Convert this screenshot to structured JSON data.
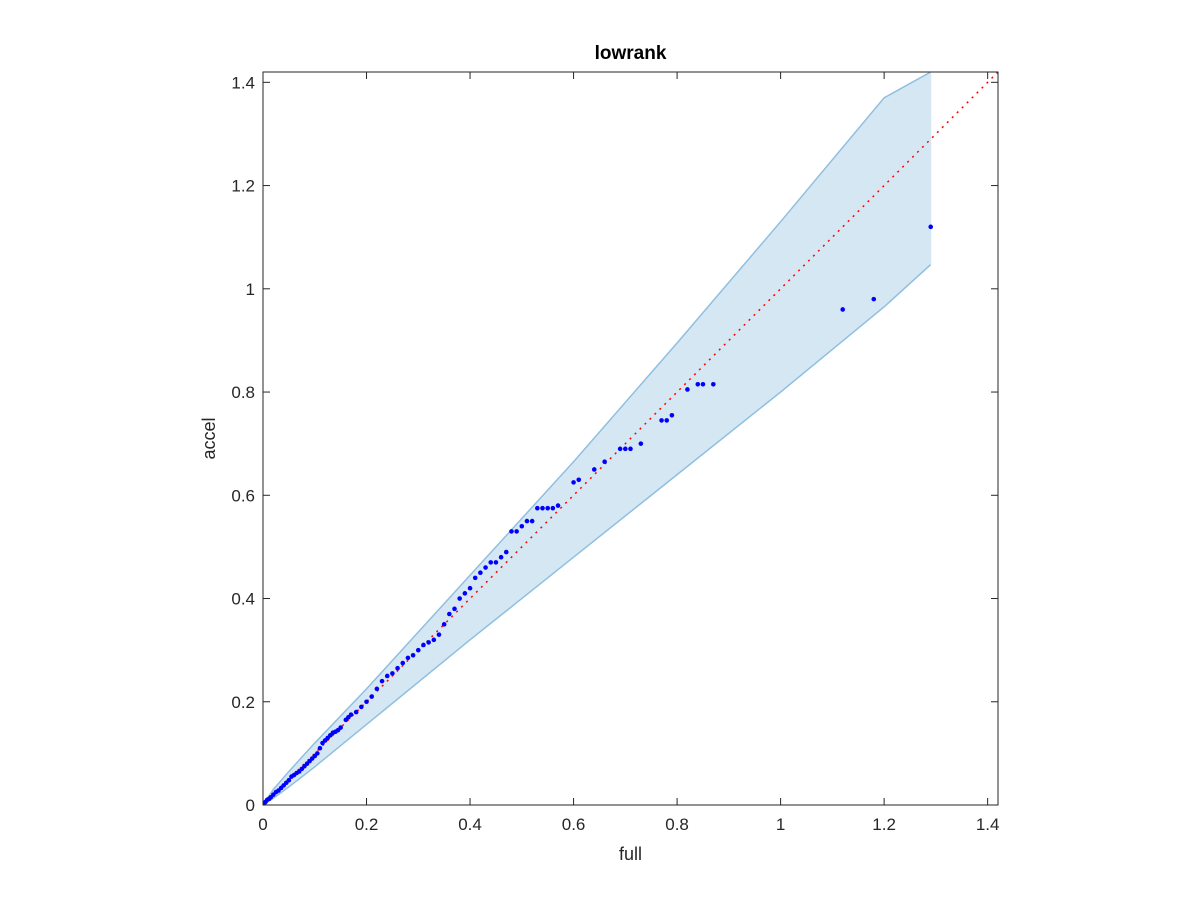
{
  "chart_data": {
    "type": "scatter",
    "title": "lowrank",
    "xlabel": "full",
    "ylabel": "accel",
    "xlim": [
      0,
      1.42
    ],
    "ylim": [
      0,
      1.42
    ],
    "xticks": [
      0,
      0.2,
      0.4,
      0.6,
      0.8,
      1,
      1.2,
      1.4
    ],
    "yticks": [
      0,
      0.2,
      0.4,
      0.6,
      0.8,
      1,
      1.2,
      1.4
    ],
    "xtick_labels": [
      "0",
      "0.2",
      "0.4",
      "0.6",
      "0.8",
      "1",
      "1.2",
      "1.4"
    ],
    "ytick_labels": [
      "0",
      "0.2",
      "0.4",
      "0.6",
      "0.8",
      "1",
      "1.2",
      "1.4"
    ],
    "grid": false,
    "reference_line": {
      "style": "dotted",
      "color": "#ff0000",
      "x": [
        0,
        1.42
      ],
      "y": [
        0,
        1.42
      ]
    },
    "band": {
      "color": "#d6e7f4",
      "edge_color": "#8fbfe0",
      "x": [
        0,
        0.02,
        0.05,
        0.1,
        0.2,
        0.4,
        0.6,
        0.8,
        1.0,
        1.2,
        1.29
      ],
      "upper": [
        0,
        0.03,
        0.065,
        0.12,
        0.225,
        0.445,
        0.665,
        0.895,
        1.13,
        1.37,
        1.42
      ],
      "lower": [
        0,
        0.013,
        0.035,
        0.074,
        0.156,
        0.32,
        0.48,
        0.64,
        0.8,
        0.965,
        1.047
      ]
    },
    "series": [
      {
        "color": "#0000ff",
        "x": [
          0.002,
          0.005,
          0.008,
          0.012,
          0.015,
          0.02,
          0.025,
          0.03,
          0.035,
          0.04,
          0.045,
          0.05,
          0.055,
          0.06,
          0.065,
          0.07,
          0.075,
          0.08,
          0.085,
          0.09,
          0.095,
          0.1,
          0.105,
          0.11,
          0.115,
          0.12,
          0.125,
          0.13,
          0.135,
          0.14,
          0.145,
          0.15,
          0.16,
          0.165,
          0.17,
          0.18,
          0.19,
          0.2,
          0.21,
          0.22,
          0.23,
          0.24,
          0.25,
          0.26,
          0.27,
          0.28,
          0.29,
          0.3,
          0.31,
          0.32,
          0.33,
          0.34,
          0.35,
          0.36,
          0.37,
          0.38,
          0.39,
          0.4,
          0.41,
          0.42,
          0.43,
          0.44,
          0.45,
          0.46,
          0.47,
          0.48,
          0.49,
          0.5,
          0.51,
          0.52,
          0.53,
          0.54,
          0.55,
          0.56,
          0.57,
          0.6,
          0.61,
          0.64,
          0.66,
          0.69,
          0.7,
          0.71,
          0.73,
          0.77,
          0.78,
          0.79,
          0.82,
          0.84,
          0.85,
          0.87,
          1.12,
          1.18,
          1.29
        ],
        "y": [
          0.002,
          0.006,
          0.01,
          0.012,
          0.015,
          0.02,
          0.025,
          0.028,
          0.033,
          0.038,
          0.043,
          0.048,
          0.055,
          0.058,
          0.062,
          0.065,
          0.07,
          0.075,
          0.08,
          0.085,
          0.09,
          0.095,
          0.1,
          0.11,
          0.12,
          0.125,
          0.13,
          0.135,
          0.14,
          0.142,
          0.145,
          0.15,
          0.165,
          0.17,
          0.175,
          0.18,
          0.19,
          0.2,
          0.21,
          0.225,
          0.24,
          0.25,
          0.255,
          0.265,
          0.275,
          0.285,
          0.29,
          0.3,
          0.31,
          0.315,
          0.32,
          0.33,
          0.35,
          0.37,
          0.38,
          0.4,
          0.41,
          0.42,
          0.44,
          0.45,
          0.46,
          0.47,
          0.47,
          0.48,
          0.49,
          0.53,
          0.53,
          0.54,
          0.55,
          0.55,
          0.575,
          0.575,
          0.575,
          0.575,
          0.58,
          0.625,
          0.63,
          0.65,
          0.665,
          0.69,
          0.69,
          0.69,
          0.7,
          0.745,
          0.745,
          0.755,
          0.805,
          0.815,
          0.815,
          0.815,
          0.96,
          0.98,
          1.12
        ]
      }
    ]
  }
}
